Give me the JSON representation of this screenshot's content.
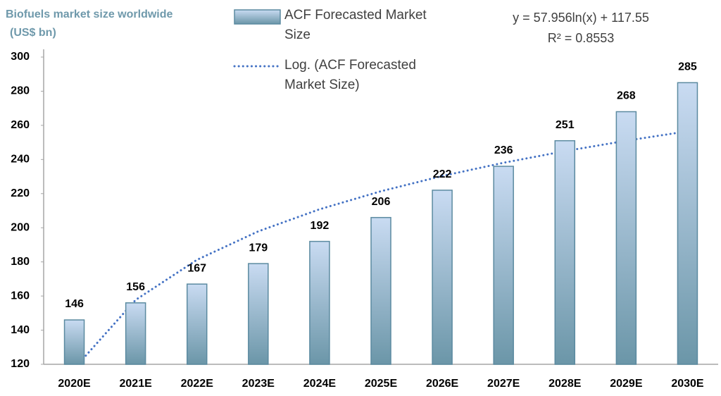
{
  "chart_data": {
    "type": "bar",
    "title": "Biofuels market size worldwide",
    "subtitle": "(US$ bn)",
    "categories": [
      "2020E",
      "2021E",
      "2022E",
      "2023E",
      "2024E",
      "2025E",
      "2026E",
      "2027E",
      "2028E",
      "2029E",
      "2030E"
    ],
    "series": [
      {
        "name": "ACF Forecasted Market Size",
        "type": "bar",
        "color": "#5b8aa0",
        "gradient": [
          "#c9dbf2",
          "#6b96a8"
        ],
        "values": [
          146,
          156,
          167,
          179,
          192,
          206,
          222,
          236,
          251,
          268,
          285
        ]
      },
      {
        "name": "Log. (ACF Forecasted Market Size)",
        "type": "line",
        "color": "#4472c4",
        "values": [
          117.55,
          157.72,
          181.22,
          197.89,
          210.83,
          221.39,
          230.33,
          238.07,
          244.89,
          251.0,
          256.52
        ]
      }
    ],
    "annotations": [
      "y = 57.956ln(x) + 117.55",
      "R² = 0.8553"
    ],
    "ylim": [
      120,
      300
    ],
    "yticks": [
      120,
      140,
      160,
      180,
      200,
      220,
      240,
      260,
      280,
      300
    ],
    "grid": false,
    "data_labels": true
  }
}
